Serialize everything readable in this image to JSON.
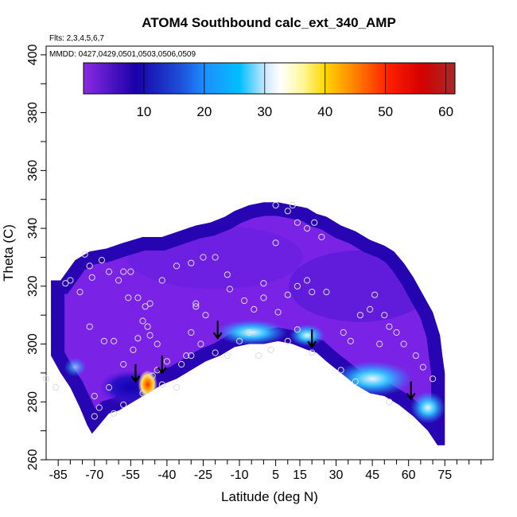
{
  "chart_data": {
    "type": "heatmap",
    "title": "ATOM4 Southbound calc_ext_340_AMP",
    "subtitle_flights": "Flts: 2,3,4,5,6,7",
    "subtitle_dates": "MMDD: 0427,0429,0501,0503,0506,0509",
    "xlabel": "Latitude (deg N)",
    "ylabel": "Theta (C)",
    "xlim": [
      -90,
      95
    ],
    "ylim": [
      260,
      403
    ],
    "x_tick_labels": [
      -85,
      -70,
      -55,
      -40,
      -25,
      -10,
      5,
      15,
      30,
      45,
      60,
      75
    ],
    "y_tick_labels": [
      260,
      280,
      300,
      320,
      340,
      360,
      380,
      400
    ],
    "colorbar": {
      "range": [
        0,
        61.5
      ],
      "tick_labels": [
        10,
        20,
        30,
        40,
        50,
        60
      ],
      "colors": [
        "#8a2be2",
        "#1a00a8",
        "#1e90ff",
        "#00bfff",
        "#ffffff",
        "#ffd700",
        "#ff8c00",
        "#ff0000",
        "#b22222"
      ]
    },
    "tropopause_arrows": [
      {
        "lat": -53,
        "theta": 287
      },
      {
        "lat": -42,
        "theta": 290
      },
      {
        "lat": -19,
        "theta": 302
      },
      {
        "lat": 20,
        "theta": 299
      },
      {
        "lat": 61,
        "theta": 281
      }
    ],
    "sample_points": [
      [
        -74,
        331
      ],
      [
        -72,
        327
      ],
      [
        -71,
        323
      ],
      [
        -67,
        329
      ],
      [
        -64,
        325
      ],
      [
        -60,
        322
      ],
      [
        -58,
        325
      ],
      [
        -55,
        325
      ],
      [
        -56,
        316
      ],
      [
        -52,
        316
      ],
      [
        -50,
        308
      ],
      [
        -48,
        306
      ],
      [
        -49,
        313
      ],
      [
        -47,
        314
      ],
      [
        -47,
        303
      ],
      [
        -44,
        300
      ],
      [
        -44,
        291
      ],
      [
        -42,
        286
      ],
      [
        -36,
        285
      ],
      [
        -34,
        293
      ],
      [
        -30,
        296
      ],
      [
        -26,
        300
      ],
      [
        -20,
        297
      ],
      [
        -15,
        296
      ],
      [
        -10,
        301
      ],
      [
        -2,
        296
      ],
      [
        3,
        298
      ],
      [
        10,
        301
      ],
      [
        14,
        305
      ],
      [
        20,
        297
      ],
      [
        -36,
        327
      ],
      [
        -30,
        328
      ],
      [
        -25,
        330
      ],
      [
        -20,
        330
      ],
      [
        -15,
        324
      ],
      [
        -8,
        315
      ],
      [
        0,
        316
      ],
      [
        5,
        335
      ],
      [
        10,
        346
      ],
      [
        14,
        342
      ],
      [
        18,
        340
      ],
      [
        21,
        342
      ],
      [
        24,
        337
      ],
      [
        -30,
        304
      ],
      [
        -28,
        313
      ],
      [
        -24,
        310
      ],
      [
        -14,
        319
      ],
      [
        -6,
        304
      ],
      [
        -4,
        312
      ],
      [
        0,
        321
      ],
      [
        6,
        311
      ],
      [
        10,
        317
      ],
      [
        14,
        320
      ],
      [
        18,
        322
      ],
      [
        20,
        318
      ],
      [
        26,
        318
      ],
      [
        33,
        304
      ],
      [
        36,
        301
      ],
      [
        40,
        310
      ],
      [
        44,
        312
      ],
      [
        46,
        317
      ],
      [
        50,
        310
      ],
      [
        52,
        306
      ],
      [
        55,
        304
      ],
      [
        58,
        300
      ],
      [
        63,
        296
      ],
      [
        66,
        292
      ],
      [
        70,
        288
      ],
      [
        -80,
        322
      ],
      [
        -76,
        318
      ],
      [
        -72,
        306
      ],
      [
        -66,
        301
      ],
      [
        -62,
        301
      ],
      [
        -58,
        293
      ],
      [
        -52,
        302
      ],
      [
        -54,
        298
      ],
      [
        -64,
        285
      ],
      [
        -70,
        282
      ],
      [
        -68,
        278
      ],
      [
        -70,
        275
      ],
      [
        -62,
        276
      ],
      [
        -58,
        279
      ],
      [
        -50,
        283
      ],
      [
        -46,
        289
      ],
      [
        -40,
        294
      ],
      [
        -32,
        296
      ],
      [
        32,
        291
      ],
      [
        38,
        287
      ],
      [
        52,
        280
      ],
      [
        48,
        300
      ],
      [
        5,
        348
      ],
      [
        12,
        348
      ],
      [
        -28,
        314
      ],
      [
        -42,
        322
      ],
      [
        -82,
        321
      ],
      [
        -86,
        285
      ],
      [
        -90,
        288
      ]
    ]
  }
}
